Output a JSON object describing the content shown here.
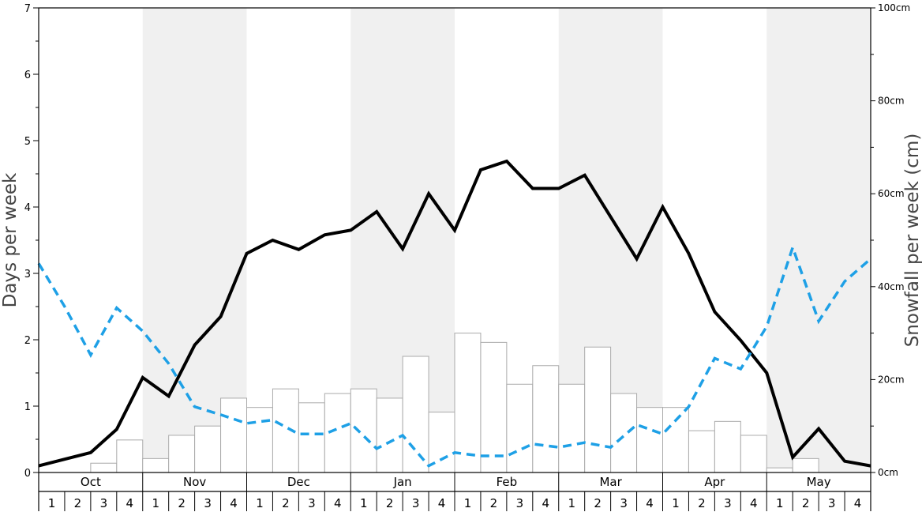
{
  "chart_data": {
    "type": "bar",
    "title": "",
    "months": [
      "Oct",
      "Nov",
      "Dec",
      "Jan",
      "Feb",
      "Mar",
      "Apr",
      "May"
    ],
    "weeks_per_month": [
      "1",
      "2",
      "3",
      "4"
    ],
    "ylabel_left": "Days per week",
    "ylabel_right": "Snowfall per week (cm)",
    "ylim_left": [
      0,
      7
    ],
    "left_ticks": [
      0,
      1,
      2,
      3,
      4,
      5,
      6,
      7
    ],
    "ylim_right": [
      0,
      100
    ],
    "right_ticks": [
      "0cm",
      "20cm",
      "40cm",
      "60cm",
      "80cm",
      "100cm"
    ],
    "grid": false,
    "colors": {
      "shade": "#f0f0f0",
      "bar_fill": "#ffffff",
      "bar_stroke": "#aaaaaa",
      "line_solid": "#000000",
      "line_dashed": "#1ea0e6",
      "axis_title": "#444444"
    },
    "series": [
      {
        "type": "bar",
        "axis": "right",
        "values": [
          0,
          0,
          2,
          7,
          3,
          8,
          10,
          16,
          14,
          18,
          15,
          17,
          18,
          16,
          25,
          13,
          30,
          28,
          19,
          23,
          19,
          27,
          17,
          14,
          14,
          9,
          11,
          8,
          1,
          3,
          0,
          0
        ]
      },
      {
        "type": "line",
        "style": "solid",
        "axis": "left",
        "values": [
          0.1,
          0.2,
          0.3,
          0.65,
          1.43,
          1.15,
          1.92,
          2.35,
          3.3,
          3.5,
          3.36,
          3.58,
          3.65,
          3.93,
          3.37,
          4.2,
          3.65,
          4.56,
          4.69,
          4.28,
          4.28,
          4.48,
          3.85,
          3.22,
          4.0,
          3.3,
          2.42,
          1.99,
          1.5,
          0.23,
          0.66,
          0.17,
          0.1
        ]
      },
      {
        "type": "line",
        "style": "dashed",
        "axis": "left",
        "values": [
          3.15,
          2.5,
          1.77,
          2.48,
          2.13,
          1.64,
          0.99,
          0.87,
          0.74,
          0.79,
          0.58,
          0.58,
          0.74,
          0.36,
          0.56,
          0.1,
          0.3,
          0.25,
          0.25,
          0.43,
          0.38,
          0.45,
          0.38,
          0.72,
          0.58,
          0.99,
          1.72,
          1.56,
          2.2,
          3.39,
          2.28,
          2.88,
          3.22
        ]
      }
    ]
  }
}
